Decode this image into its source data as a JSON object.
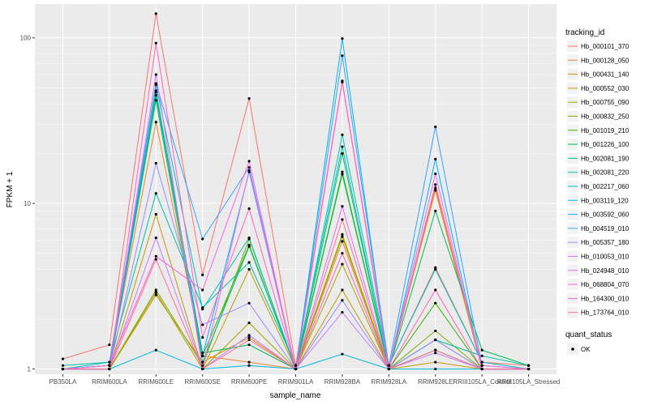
{
  "chart_data": {
    "type": "line",
    "xlabel": "sample_name",
    "ylabel": "FPKM + 1",
    "y_scale": "log10",
    "ylim": [
      0.93,
      160
    ],
    "y_ticks": [
      1,
      10,
      100
    ],
    "y_tick_labels": [
      "1",
      "10",
      "100"
    ],
    "grid": true,
    "legend_placement": "right",
    "categories": [
      "PB350LA",
      "RRIM600LA",
      "RRIM600LE",
      "RRIM600SE",
      "RRIM600PE",
      "RRIM901LA",
      "RRIM928BA",
      "RRIM928LA",
      "RRIM928LE",
      "RRIII105LA_Control",
      "RRIII105LA_Stressed"
    ],
    "legend": {
      "title": "tracking_id",
      "quant_status_title": "quant_status",
      "quant_status_label": "OK"
    },
    "series": [
      {
        "name": "Hb_000101_370",
        "color": "#F8766D",
        "values": [
          1.15,
          1.4,
          140,
          3.7,
          43,
          1.05,
          55,
          1.05,
          4.1,
          1.1,
          1.05
        ]
      },
      {
        "name": "Hb_000128_050",
        "color": "#EA8331",
        "values": [
          1.0,
          1.05,
          31,
          1.2,
          1.1,
          1.0,
          5.9,
          1.0,
          12.0,
          1.0,
          1.0
        ]
      },
      {
        "name": "Hb_000431_140",
        "color": "#D89000",
        "values": [
          1.0,
          1.0,
          2.8,
          1.1,
          1.55,
          1.0,
          6.3,
          1.0,
          12.4,
          1.0,
          1.0
        ]
      },
      {
        "name": "Hb_000552_030",
        "color": "#C09B00",
        "values": [
          1.0,
          1.0,
          8.6,
          1.0,
          4.0,
          1.0,
          3.0,
          1.0,
          1.1,
          1.0,
          1.0
        ]
      },
      {
        "name": "Hb_000755_090",
        "color": "#A3A500",
        "values": [
          1.0,
          1.0,
          2.9,
          1.0,
          1.9,
          1.0,
          4.3,
          1.0,
          1.5,
          1.0,
          1.0
        ]
      },
      {
        "name": "Hb_000832_250",
        "color": "#7CAE00",
        "values": [
          1.0,
          1.0,
          3.0,
          1.05,
          6.1,
          1.0,
          6.5,
          1.0,
          1.7,
          1.0,
          1.0
        ]
      },
      {
        "name": "Hb_001019_210",
        "color": "#39B600",
        "values": [
          1.0,
          1.0,
          45,
          1.2,
          5.6,
          1.0,
          15.5,
          1.0,
          2.5,
          1.0,
          1.0
        ]
      },
      {
        "name": "Hb_001226_100",
        "color": "#00BB4E",
        "values": [
          1.0,
          1.05,
          47,
          1.25,
          1.4,
          1.0,
          15.0,
          1.0,
          9.0,
          1.3,
          1.05
        ]
      },
      {
        "name": "Hb_002081_190",
        "color": "#00BF7D",
        "values": [
          1.0,
          1.0,
          42,
          1.1,
          5.5,
          1.0,
          20,
          1.0,
          1.3,
          1.0,
          1.0
        ]
      },
      {
        "name": "Hb_002081_220",
        "color": "#00C1A3",
        "values": [
          1.05,
          1.1,
          11.5,
          2.35,
          4.4,
          1.05,
          22,
          1.0,
          1.5,
          1.2,
          1.05
        ]
      },
      {
        "name": "Hb_002217_060",
        "color": "#00BFC4",
        "values": [
          1.0,
          1.1,
          52,
          2.3,
          6.2,
          1.0,
          26,
          1.05,
          4.0,
          1.1,
          1.0
        ]
      },
      {
        "name": "Hb_003119_120",
        "color": "#00BAE0",
        "values": [
          1.0,
          1.0,
          1.3,
          1.0,
          1.05,
          1.0,
          1.23,
          1.0,
          1.0,
          1.0,
          1.0
        ]
      },
      {
        "name": "Hb_003592_060",
        "color": "#00B0F6",
        "values": [
          1.0,
          1.0,
          48,
          1.2,
          15.5,
          1.0,
          99,
          1.0,
          18.5,
          1.0,
          1.0
        ]
      },
      {
        "name": "Hb_004519_010",
        "color": "#35A2FF",
        "values": [
          1.0,
          1.05,
          53,
          6.1,
          16.5,
          1.0,
          78,
          1.05,
          29,
          1.05,
          1.0
        ]
      },
      {
        "name": "Hb_005357_180",
        "color": "#9590FF",
        "values": [
          1.0,
          1.0,
          17.5,
          1.85,
          2.5,
          1.0,
          2.6,
          1.0,
          1.5,
          1.0,
          1.0
        ]
      },
      {
        "name": "Hb_010053_010",
        "color": "#C77CFF",
        "values": [
          1.0,
          1.0,
          6.2,
          1.0,
          1.6,
          1.0,
          2.2,
          1.0,
          1.25,
          1.0,
          1.0
        ]
      },
      {
        "name": "Hb_024948_010",
        "color": "#E76BF3",
        "values": [
          1.0,
          1.0,
          60,
          1.0,
          15.8,
          1.0,
          9.6,
          1.0,
          15.1,
          1.0,
          1.0
        ]
      },
      {
        "name": "Hb_068804_070",
        "color": "#FA62DB",
        "values": [
          1.0,
          1.05,
          4.8,
          3.0,
          18.0,
          1.0,
          54,
          1.0,
          13.0,
          1.05,
          1.0
        ]
      },
      {
        "name": "Hb_164300_010",
        "color": "#FF62BC",
        "values": [
          1.0,
          1.0,
          93,
          1.55,
          9.3,
          1.0,
          5.0,
          1.0,
          3.0,
          1.0,
          1.0
        ]
      },
      {
        "name": "Hb_173764_010",
        "color": "#FF6C91",
        "values": [
          1.0,
          1.0,
          4.6,
          1.0,
          1.5,
          1.0,
          8.0,
          1.0,
          1.3,
          1.0,
          1.0
        ]
      }
    ]
  }
}
